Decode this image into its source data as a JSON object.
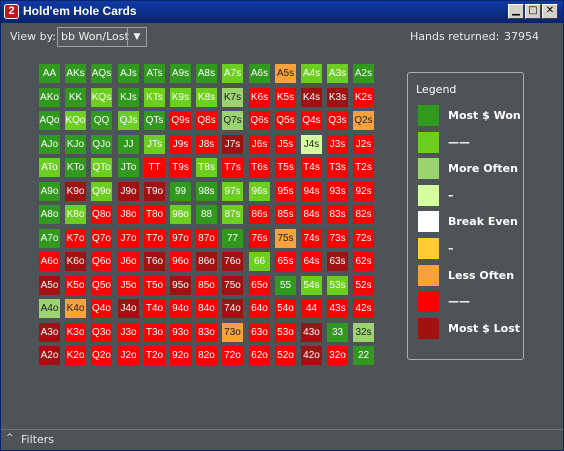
{
  "window": {
    "title": "Hold'em Hole Cards",
    "icon_label": "2",
    "minimize": "▁",
    "maximize": "□",
    "close": "✕"
  },
  "toolbar": {
    "viewby_label": "View by:",
    "viewby_value": "bb Won/Lost",
    "viewby_arrow": "▼",
    "hands_label": "Hands returned:",
    "hands_value": "37954"
  },
  "colors": {
    "most_won": "#30991e",
    "won": "#6ccf1f",
    "more_often": "#9bd371",
    "light_green": "#d5ff9e",
    "break_even": "#ffffff",
    "yellow": "#ffcc33",
    "less_often": "#f9a23b",
    "lost": "#ff0000",
    "most_lost": "#a01111"
  },
  "grid": {
    "rows": [
      [
        [
          "AA",
          "most_won"
        ],
        [
          "AKs",
          "most_won"
        ],
        [
          "AQs",
          "most_won"
        ],
        [
          "AJs",
          "most_won"
        ],
        [
          "ATs",
          "most_won"
        ],
        [
          "A9s",
          "most_won"
        ],
        [
          "A8s",
          "most_won"
        ],
        [
          "A7s",
          "won"
        ],
        [
          "A6s",
          "most_won"
        ],
        [
          "A5s",
          "less_often"
        ],
        [
          "A4s",
          "won"
        ],
        [
          "A3s",
          "won"
        ],
        [
          "A2s",
          "most_won"
        ]
      ],
      [
        [
          "AKo",
          "most_won"
        ],
        [
          "KK",
          "most_won"
        ],
        [
          "KQs",
          "won"
        ],
        [
          "KJs",
          "most_won"
        ],
        [
          "KTs",
          "won"
        ],
        [
          "K9s",
          "won"
        ],
        [
          "K8s",
          "won"
        ],
        [
          "K7s",
          "more_often"
        ],
        [
          "K6s",
          "lost"
        ],
        [
          "K5s",
          "lost"
        ],
        [
          "K4s",
          "most_lost"
        ],
        [
          "K3s",
          "most_lost"
        ],
        [
          "K2s",
          "lost"
        ]
      ],
      [
        [
          "AQo",
          "most_won"
        ],
        [
          "KQo",
          "won"
        ],
        [
          "QQ",
          "most_won"
        ],
        [
          "QJs",
          "won"
        ],
        [
          "QTs",
          "most_won"
        ],
        [
          "Q9s",
          "lost"
        ],
        [
          "Q8s",
          "lost"
        ],
        [
          "Q7s",
          "more_often"
        ],
        [
          "Q6s",
          "lost"
        ],
        [
          "Q5s",
          "lost"
        ],
        [
          "Q4s",
          "lost"
        ],
        [
          "Q3s",
          "lost"
        ],
        [
          "Q2s",
          "less_often"
        ]
      ],
      [
        [
          "AJo",
          "most_won"
        ],
        [
          "KJo",
          "most_won"
        ],
        [
          "QJo",
          "most_won"
        ],
        [
          "JJ",
          "most_won"
        ],
        [
          "JTs",
          "won"
        ],
        [
          "J9s",
          "lost"
        ],
        [
          "J8s",
          "lost"
        ],
        [
          "J7s",
          "most_lost"
        ],
        [
          "J6s",
          "lost"
        ],
        [
          "J5s",
          "lost"
        ],
        [
          "J4s",
          "light_green"
        ],
        [
          "J3s",
          "lost"
        ],
        [
          "J2s",
          "lost"
        ]
      ],
      [
        [
          "ATo",
          "won"
        ],
        [
          "KTo",
          "most_won"
        ],
        [
          "QTo",
          "won"
        ],
        [
          "JTo",
          "most_won"
        ],
        [
          "TT",
          "lost"
        ],
        [
          "T9s",
          "lost"
        ],
        [
          "T8s",
          "won"
        ],
        [
          "T7s",
          "lost"
        ],
        [
          "T6s",
          "lost"
        ],
        [
          "T5s",
          "lost"
        ],
        [
          "T4s",
          "lost"
        ],
        [
          "T3s",
          "lost"
        ],
        [
          "T2s",
          "lost"
        ]
      ],
      [
        [
          "A9o",
          "most_won"
        ],
        [
          "K9o",
          "most_lost"
        ],
        [
          "Q9o",
          "won"
        ],
        [
          "J9o",
          "most_lost"
        ],
        [
          "T9o",
          "most_lost"
        ],
        [
          "99",
          "most_won"
        ],
        [
          "98s",
          "most_won"
        ],
        [
          "97s",
          "won"
        ],
        [
          "96s",
          "won"
        ],
        [
          "95s",
          "lost"
        ],
        [
          "94s",
          "lost"
        ],
        [
          "93s",
          "lost"
        ],
        [
          "92s",
          "lost"
        ]
      ],
      [
        [
          "A8o",
          "most_won"
        ],
        [
          "K8o",
          "won"
        ],
        [
          "Q8o",
          "lost"
        ],
        [
          "J8o",
          "lost"
        ],
        [
          "T8o",
          "lost"
        ],
        [
          "98o",
          "won"
        ],
        [
          "88",
          "most_won"
        ],
        [
          "87s",
          "won"
        ],
        [
          "86s",
          "lost"
        ],
        [
          "85s",
          "lost"
        ],
        [
          "84s",
          "lost"
        ],
        [
          "83s",
          "lost"
        ],
        [
          "82s",
          "lost"
        ]
      ],
      [
        [
          "A7o",
          "most_won"
        ],
        [
          "K7o",
          "lost"
        ],
        [
          "Q7o",
          "lost"
        ],
        [
          "J7o",
          "lost"
        ],
        [
          "T7o",
          "lost"
        ],
        [
          "97o",
          "lost"
        ],
        [
          "87o",
          "lost"
        ],
        [
          "77",
          "most_won"
        ],
        [
          "76s",
          "lost"
        ],
        [
          "75s",
          "less_often"
        ],
        [
          "74s",
          "lost"
        ],
        [
          "73s",
          "lost"
        ],
        [
          "72s",
          "lost"
        ]
      ],
      [
        [
          "A6o",
          "lost"
        ],
        [
          "K6o",
          "most_lost"
        ],
        [
          "Q6o",
          "lost"
        ],
        [
          "J6o",
          "lost"
        ],
        [
          "T6o",
          "most_lost"
        ],
        [
          "96o",
          "lost"
        ],
        [
          "86o",
          "most_lost"
        ],
        [
          "76o",
          "most_lost"
        ],
        [
          "66",
          "won"
        ],
        [
          "65s",
          "lost"
        ],
        [
          "64s",
          "lost"
        ],
        [
          "63s",
          "most_lost"
        ],
        [
          "62s",
          "lost"
        ]
      ],
      [
        [
          "A5o",
          "most_lost"
        ],
        [
          "K5o",
          "lost"
        ],
        [
          "Q5o",
          "lost"
        ],
        [
          "J5o",
          "lost"
        ],
        [
          "T5o",
          "lost"
        ],
        [
          "95o",
          "most_lost"
        ],
        [
          "85o",
          "lost"
        ],
        [
          "75o",
          "most_lost"
        ],
        [
          "65o",
          "lost"
        ],
        [
          "55",
          "most_won"
        ],
        [
          "54s",
          "won"
        ],
        [
          "53s",
          "won"
        ],
        [
          "52s",
          "lost"
        ]
      ],
      [
        [
          "A4o",
          "more_often"
        ],
        [
          "K4o",
          "less_often"
        ],
        [
          "Q4o",
          "lost"
        ],
        [
          "J4o",
          "most_lost"
        ],
        [
          "T4o",
          "lost"
        ],
        [
          "94o",
          "lost"
        ],
        [
          "84o",
          "lost"
        ],
        [
          "74o",
          "most_lost"
        ],
        [
          "64o",
          "lost"
        ],
        [
          "54o",
          "lost"
        ],
        [
          "44",
          "lost"
        ],
        [
          "43s",
          "lost"
        ],
        [
          "42s",
          "lost"
        ]
      ],
      [
        [
          "A3o",
          "most_lost"
        ],
        [
          "K3o",
          "lost"
        ],
        [
          "Q3o",
          "lost"
        ],
        [
          "J3o",
          "lost"
        ],
        [
          "T3o",
          "lost"
        ],
        [
          "93o",
          "lost"
        ],
        [
          "83o",
          "lost"
        ],
        [
          "73o",
          "less_often"
        ],
        [
          "63o",
          "lost"
        ],
        [
          "53o",
          "lost"
        ],
        [
          "43o",
          "most_lost"
        ],
        [
          "33",
          "most_won"
        ],
        [
          "32s",
          "more_often"
        ]
      ],
      [
        [
          "A2o",
          "most_lost"
        ],
        [
          "K2o",
          "lost"
        ],
        [
          "Q2o",
          "lost"
        ],
        [
          "J2o",
          "lost"
        ],
        [
          "T2o",
          "lost"
        ],
        [
          "92o",
          "lost"
        ],
        [
          "82o",
          "lost"
        ],
        [
          "72o",
          "lost"
        ],
        [
          "62o",
          "lost"
        ],
        [
          "52o",
          "lost"
        ],
        [
          "42o",
          "most_lost"
        ],
        [
          "32o",
          "lost"
        ],
        [
          "22",
          "most_won"
        ]
      ]
    ]
  },
  "legend": {
    "title": "Legend",
    "items": [
      {
        "label": "Most $ Won",
        "color_key": "most_won"
      },
      {
        "label": "——",
        "color_key": "won"
      },
      {
        "label": "More Often",
        "color_key": "more_often"
      },
      {
        "label": "–",
        "color_key": "light_green"
      },
      {
        "label": "Break Even",
        "color_key": "break_even"
      },
      {
        "label": "–",
        "color_key": "yellow"
      },
      {
        "label": "Less Often",
        "color_key": "less_often"
      },
      {
        "label": "——",
        "color_key": "lost"
      },
      {
        "label": "Most $ Lost",
        "color_key": "most_lost"
      }
    ]
  },
  "filters": {
    "icon": "^",
    "label": "Filters"
  }
}
